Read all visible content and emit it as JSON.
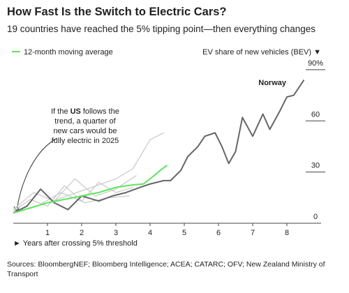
{
  "chart_data": {
    "type": "line",
    "title": "How Fast Is the Switch to Electric Cars?",
    "subtitle": "19 countries have reached the 5% tipping point—then everything changes",
    "y_axis_label": "EV share of new vehicles (BEV) ▼",
    "x_axis_label": "► Years after crossing 5% threshold",
    "source": "Sources: BloombergNEF; Bloomberg Intelligence; ACEA; CATARC; OFV; New Zealand Ministry of Transport",
    "annotation": {
      "prefix": "If the",
      "bold": "US",
      "suffix": "follows the",
      "lines": [
        "trend, a quarter of",
        "new cars would be",
        "fully electric in 2025"
      ]
    },
    "xlim": [
      0,
      9
    ],
    "xticks": [
      1,
      2,
      3,
      4,
      5,
      6,
      7,
      8
    ],
    "ylim": [
      0,
      92
    ],
    "yticks": [
      0,
      30,
      60,
      {
        "value": 90,
        "label": "90%"
      }
    ],
    "series": [
      {
        "color": "#cccccc",
        "x": [
          0,
          1,
          2,
          3,
          3.5,
          4,
          4.4
        ],
        "values": [
          6,
          12,
          19,
          26,
          32,
          49,
          53
        ]
      },
      {
        "color": "#cccccc",
        "x": [
          0,
          0.5,
          1,
          1.5,
          2,
          2.5,
          3,
          3.5
        ],
        "values": [
          7,
          14,
          10,
          22,
          13,
          24,
          18,
          21
        ]
      },
      {
        "color": "#cccccc",
        "x": [
          0,
          0.6,
          1.2,
          1.8,
          2.4,
          3,
          3.6
        ],
        "values": [
          8,
          18,
          13,
          26,
          16,
          20,
          28
        ]
      },
      {
        "color": "#cccccc",
        "x": [
          0,
          0.7,
          1.4,
          2.1,
          2.8,
          3.4
        ],
        "values": [
          6,
          10,
          18,
          12,
          15,
          16
        ]
      },
      {
        "name": "Norway",
        "color": "#666666",
        "x": [
          0,
          0.4,
          0.8,
          1.2,
          1.6,
          2,
          2.5,
          2.9,
          3.3,
          3.7,
          4,
          4.4,
          4.6,
          4.9,
          5.1,
          5.4,
          5.6,
          5.9,
          6.1,
          6.3,
          6.5,
          6.7,
          7,
          7.3,
          7.5,
          7.8,
          8,
          8.2,
          8.5
        ],
        "values": [
          6,
          10,
          20,
          12,
          8,
          16,
          13,
          16,
          18,
          21,
          23,
          25,
          25,
          31,
          39,
          45,
          51,
          53,
          45,
          35,
          42,
          62,
          51,
          64,
          55,
          66,
          74,
          75,
          84
        ]
      },
      {
        "name": "12-month moving average",
        "color": "#5ce65c",
        "x": [
          0,
          0.5,
          1,
          1.5,
          2,
          2.5,
          3,
          3.5,
          3.8,
          4,
          4.3,
          4.5
        ],
        "values": [
          6,
          9,
          12,
          14,
          16,
          18,
          21,
          22.5,
          23,
          26,
          31,
          34
        ]
      }
    ]
  }
}
